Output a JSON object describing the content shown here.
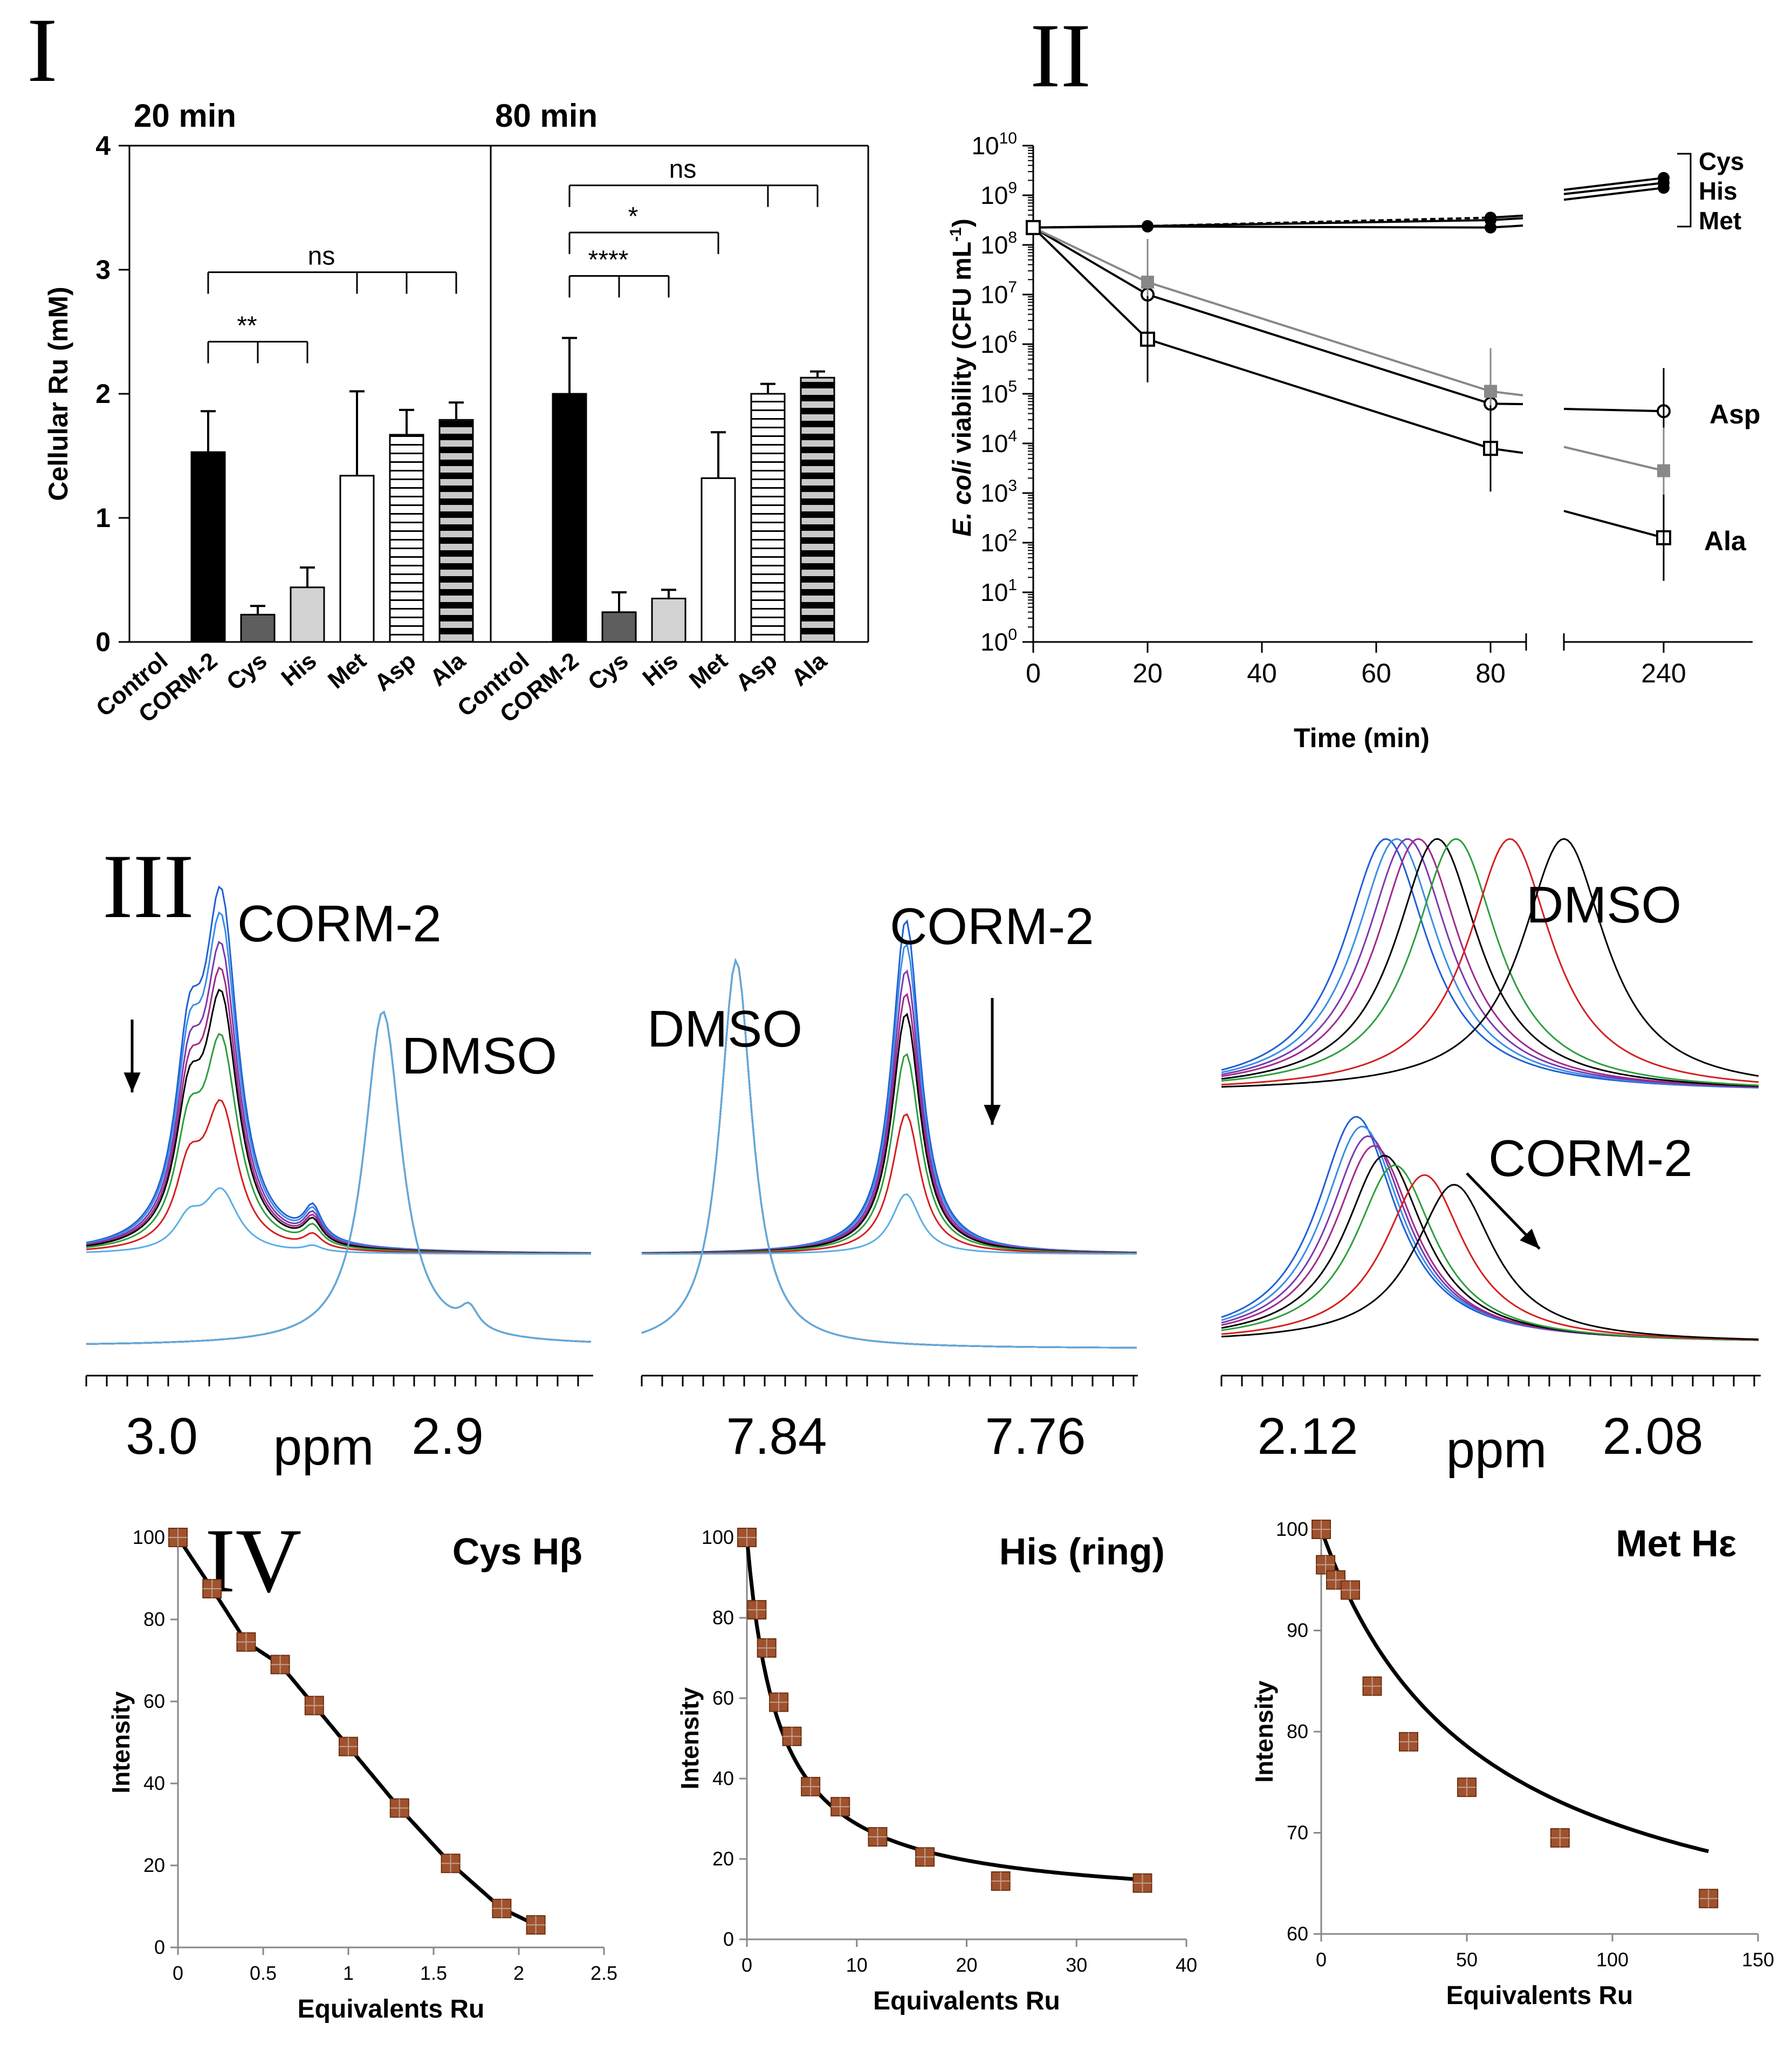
{
  "panel_labels": [
    "I",
    "II",
    "III",
    "IV"
  ],
  "chart_data": [
    {
      "id": "I",
      "type": "bar",
      "ylabel": "Cellular Ru (mM)",
      "ylim": [
        0,
        4
      ],
      "yticks": [
        "0",
        "1",
        "2",
        "3",
        "4"
      ],
      "categories": [
        "Control",
        "CORM-2",
        "Cys",
        "His",
        "Met",
        "Asp",
        "Ala"
      ],
      "groups": [
        {
          "title": "20 min",
          "values": [
            0,
            1.53,
            0.22,
            0.44,
            1.34,
            1.67,
            1.79
          ],
          "errors": [
            0,
            0.33,
            0.07,
            0.16,
            0.68,
            0.2,
            0.14
          ],
          "brackets": [
            {
              "label": "**",
              "targets": [
                "Cys",
                "His"
              ],
              "y": 2.42
            },
            {
              "label": "ns",
              "targets": [
                "Met",
                "Asp",
                "Ala"
              ],
              "y": 2.98
            }
          ]
        },
        {
          "title": "80 min",
          "values": [
            0,
            2.0,
            0.24,
            0.35,
            1.32,
            2.0,
            2.13
          ],
          "errors": [
            0,
            0.45,
            0.16,
            0.07,
            0.37,
            0.08,
            0.05
          ],
          "brackets": [
            {
              "label": "****",
              "targets": [
                "Cys",
                "His"
              ],
              "y": 2.95
            },
            {
              "label": "*",
              "targets": [
                "Met"
              ],
              "y": 3.3
            },
            {
              "label": "ns",
              "targets": [
                "Asp",
                "Ala"
              ],
              "y": 3.68
            }
          ]
        }
      ],
      "bar_styles": [
        "none",
        "black",
        "dark-gray",
        "light-gray",
        "white",
        "horizontal-lines",
        "thick-stripes"
      ]
    },
    {
      "id": "II",
      "type": "line",
      "xlabel": "Time (min)",
      "ylabel_parts": [
        "E. coli",
        " viability (CFU mL",
        "-1",
        ")"
      ],
      "y_scale": "log10",
      "ylim_exponent": [
        0,
        10
      ],
      "ytick_base": "10",
      "ytick_exponents": [
        "0",
        "1",
        "2",
        "3",
        "4",
        "5",
        "6",
        "7",
        "8",
        "9",
        "10"
      ],
      "xticks": [
        "0",
        "20",
        "40",
        "60",
        "80",
        "240"
      ],
      "x_axis_break": [
        85,
        235
      ],
      "series": [
        {
          "name": "Cys",
          "x": [
            0,
            20,
            80,
            240
          ],
          "log10_y": [
            8.35,
            8.38,
            8.55,
            9.35
          ]
        },
        {
          "name": "His",
          "x": [
            0,
            20,
            80,
            240
          ],
          "log10_y": [
            8.35,
            8.38,
            8.5,
            9.25
          ]
        },
        {
          "name": "Met",
          "x": [
            0,
            20,
            80,
            240
          ],
          "log10_y": [
            8.35,
            8.37,
            8.35,
            9.15
          ]
        },
        {
          "name": "Asp",
          "x": [
            0,
            20,
            80,
            240
          ],
          "log10_y": [
            8.35,
            7.0,
            4.8,
            4.65
          ],
          "marker": "open-circle"
        },
        {
          "name": "gray",
          "x": [
            0,
            20,
            80,
            240
          ],
          "log10_y": [
            8.35,
            7.25,
            5.05,
            3.45
          ],
          "marker": "gray-square"
        },
        {
          "name": "Ala",
          "x": [
            0,
            20,
            80,
            240
          ],
          "log10_y": [
            8.35,
            6.1,
            3.9,
            2.1
          ],
          "marker": "open-square"
        }
      ],
      "labels": {
        "group_top": [
          "Cys",
          "His",
          "Met"
        ],
        "asp": "Asp",
        "ala": "Ala"
      }
    },
    {
      "id": "III",
      "type": "line",
      "description_free": true,
      "subplots": [
        {
          "xticks": [
            "3.0",
            "2.9"
          ],
          "xlabel": "ppm",
          "labels": [
            "CORM-2",
            "DMSO"
          ]
        },
        {
          "xticks": [
            "7.84",
            "7.76"
          ],
          "labels": [
            "DMSO",
            "CORM-2"
          ]
        },
        {
          "xticks": [
            "2.12",
            "2.08"
          ],
          "xlabel": "ppm",
          "labels": [
            "DMSO",
            "CORM-2"
          ]
        }
      ],
      "trace_colors": [
        "#1f5fd6",
        "#3a8ee6",
        "#7a3ab0",
        "#a02a8a",
        "#000000",
        "#2e9e3e",
        "#d42020",
        "#5aaee6"
      ]
    },
    {
      "id": "IV-a",
      "type": "scatter",
      "title": "Cys Hβ",
      "xlabel": "Equivalents Ru",
      "ylabel": "Intensity",
      "xlim": [
        0,
        2.5
      ],
      "ylim": [
        0,
        100
      ],
      "xticks": [
        "0",
        "0.5",
        "1",
        "1.5",
        "2",
        "2.5"
      ],
      "yticks": [
        "0",
        "20",
        "40",
        "60",
        "80",
        "100"
      ],
      "x": [
        0,
        0.2,
        0.4,
        0.6,
        0.8,
        1.0,
        1.3,
        1.6,
        1.9,
        2.1
      ],
      "y": [
        100,
        87.5,
        74.5,
        69,
        59,
        49,
        34,
        20.5,
        9.5,
        5.5
      ]
    },
    {
      "id": "IV-b",
      "type": "scatter",
      "title": "His (ring)",
      "xlabel": "Equivalents Ru",
      "ylabel": "Intensity",
      "xlim": [
        0,
        40
      ],
      "ylim": [
        0,
        100
      ],
      "xticks": [
        "0",
        "10",
        "20",
        "30",
        "40"
      ],
      "yticks": [
        "0",
        "20",
        "40",
        "60",
        "80",
        "100"
      ],
      "x": [
        0,
        0.9,
        1.8,
        2.9,
        4.1,
        5.8,
        8.5,
        11.9,
        16.2,
        23.1,
        36.0
      ],
      "y": [
        100,
        82,
        72.5,
        59,
        50.5,
        38,
        33,
        25.5,
        20.5,
        14.5,
        14
      ]
    },
    {
      "id": "IV-c",
      "type": "scatter",
      "title": "Met Hε",
      "xlabel": "Equivalents Ru",
      "ylabel": "Intensity",
      "xlim": [
        0,
        150
      ],
      "ylim": [
        60,
        100
      ],
      "xticks": [
        "0",
        "50",
        "100",
        "150"
      ],
      "yticks": [
        "60",
        "70",
        "80",
        "90",
        "100"
      ],
      "x": [
        0,
        1.5,
        5,
        10,
        17.5,
        30,
        50,
        82,
        133
      ],
      "y": [
        100,
        96.5,
        95,
        94,
        84.5,
        79,
        74.5,
        69.5,
        63.5
      ]
    }
  ]
}
